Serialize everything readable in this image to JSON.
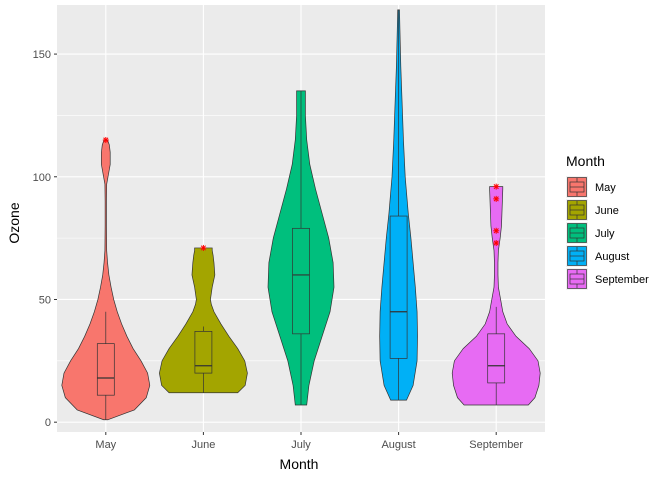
{
  "chart_data": {
    "type": "violin",
    "xlabel": "Month",
    "ylabel": "Ozone",
    "ylim": [
      -4,
      170
    ],
    "yticks": [
      0,
      50,
      100,
      150
    ],
    "categories": [
      "May",
      "June",
      "July",
      "August",
      "September"
    ],
    "grid": true,
    "legend": {
      "title": "Month",
      "position": "right",
      "entries": [
        "May",
        "June",
        "July",
        "August",
        "September"
      ]
    },
    "colors": {
      "May": "#F8766D",
      "June": "#A3A500",
      "July": "#00BF7D",
      "August": "#00B0F6",
      "September": "#E76BF3"
    },
    "outlier_color": "#FF0000",
    "series": [
      {
        "name": "May",
        "min": 1,
        "q1": 11,
        "median": 18,
        "q3": 32,
        "whisker_low": 1,
        "whisker_high": 45,
        "max": 115,
        "outliers": [
          115
        ],
        "density": [
          [
            1,
            0.05
          ],
          [
            5,
            0.65
          ],
          [
            10,
            0.92
          ],
          [
            15,
            1.0
          ],
          [
            20,
            0.95
          ],
          [
            25,
            0.8
          ],
          [
            30,
            0.62
          ],
          [
            35,
            0.48
          ],
          [
            40,
            0.36
          ],
          [
            45,
            0.26
          ],
          [
            50,
            0.18
          ],
          [
            55,
            0.12
          ],
          [
            60,
            0.07
          ],
          [
            65,
            0.04
          ],
          [
            70,
            0.02
          ],
          [
            80,
            0.015
          ],
          [
            90,
            0.015
          ],
          [
            97,
            0.02
          ],
          [
            100,
            0.05
          ],
          [
            105,
            0.1
          ],
          [
            110,
            0.1
          ],
          [
            113,
            0.08
          ],
          [
            115,
            0.04
          ]
        ]
      },
      {
        "name": "June",
        "min": 12,
        "q1": 20,
        "median": 23,
        "q3": 37,
        "whisker_low": 12,
        "whisker_high": 39,
        "max": 71,
        "outliers": [
          71
        ],
        "density": [
          [
            12,
            0.78
          ],
          [
            15,
            0.95
          ],
          [
            20,
            1.0
          ],
          [
            25,
            0.94
          ],
          [
            30,
            0.78
          ],
          [
            35,
            0.58
          ],
          [
            40,
            0.4
          ],
          [
            45,
            0.24
          ],
          [
            48,
            0.18
          ],
          [
            50,
            0.16
          ],
          [
            55,
            0.2
          ],
          [
            60,
            0.26
          ],
          [
            65,
            0.24
          ],
          [
            68,
            0.22
          ],
          [
            70,
            0.2
          ],
          [
            71,
            0.2
          ]
        ]
      },
      {
        "name": "July",
        "min": 7,
        "q1": 36,
        "median": 60,
        "q3": 79,
        "whisker_low": 7,
        "whisker_high": 135,
        "max": 135,
        "outliers": [],
        "density": [
          [
            7,
            0.13
          ],
          [
            15,
            0.18
          ],
          [
            25,
            0.3
          ],
          [
            35,
            0.48
          ],
          [
            45,
            0.66
          ],
          [
            55,
            0.75
          ],
          [
            65,
            0.73
          ],
          [
            75,
            0.63
          ],
          [
            85,
            0.48
          ],
          [
            95,
            0.33
          ],
          [
            105,
            0.2
          ],
          [
            115,
            0.13
          ],
          [
            125,
            0.1
          ],
          [
            130,
            0.1
          ],
          [
            135,
            0.1
          ]
        ]
      },
      {
        "name": "August",
        "min": 9,
        "q1": 26,
        "median": 45,
        "q3": 84,
        "whisker_low": 9,
        "whisker_high": 168,
        "max": 168,
        "outliers": [],
        "density": [
          [
            9,
            0.18
          ],
          [
            15,
            0.33
          ],
          [
            25,
            0.42
          ],
          [
            35,
            0.43
          ],
          [
            45,
            0.42
          ],
          [
            55,
            0.38
          ],
          [
            65,
            0.33
          ],
          [
            75,
            0.28
          ],
          [
            85,
            0.22
          ],
          [
            100,
            0.15
          ],
          [
            115,
            0.11
          ],
          [
            130,
            0.08
          ],
          [
            145,
            0.05
          ],
          [
            160,
            0.03
          ],
          [
            168,
            0.02
          ]
        ]
      },
      {
        "name": "September",
        "min": 7,
        "q1": 16,
        "median": 23,
        "q3": 36,
        "whisker_low": 7,
        "whisker_high": 47,
        "max": 96,
        "outliers": [
          73,
          78,
          91,
          96
        ],
        "density": [
          [
            7,
            0.73
          ],
          [
            10,
            0.88
          ],
          [
            15,
            0.97
          ],
          [
            20,
            1.0
          ],
          [
            25,
            0.95
          ],
          [
            30,
            0.75
          ],
          [
            35,
            0.45
          ],
          [
            40,
            0.25
          ],
          [
            45,
            0.15
          ],
          [
            50,
            0.1
          ],
          [
            55,
            0.05
          ],
          [
            60,
            0.04
          ],
          [
            65,
            0.04
          ],
          [
            70,
            0.05
          ],
          [
            75,
            0.09
          ],
          [
            80,
            0.12
          ],
          [
            85,
            0.13
          ],
          [
            90,
            0.14
          ],
          [
            95,
            0.15
          ],
          [
            96,
            0.15
          ]
        ]
      }
    ]
  }
}
